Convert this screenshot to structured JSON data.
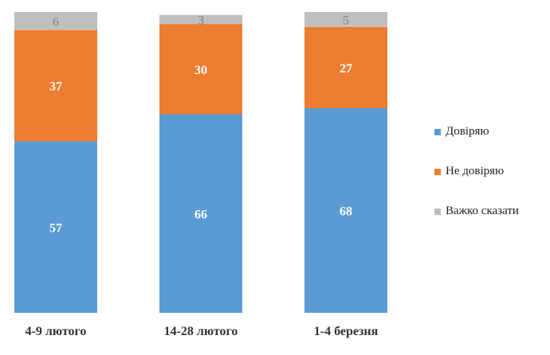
{
  "chart_data": {
    "type": "bar",
    "stacked": true,
    "categories": [
      "4-9 лютого",
      "14-28 лютого",
      "1-4 березня"
    ],
    "series": [
      {
        "name": "Довіряю",
        "values": [
          57,
          66,
          68
        ],
        "color": "#5b9bd5",
        "label_color": "#ffffff"
      },
      {
        "name": "Не довіряю",
        "values": [
          37,
          30,
          27
        ],
        "color": "#ed7d31",
        "label_color": "#ffffff"
      },
      {
        "name": "Важко сказати",
        "values": [
          6,
          3,
          5
        ],
        "color": "#bfbfbf",
        "label_color": "#7f7f7f"
      }
    ],
    "ylim": [
      0,
      100
    ],
    "grid": false,
    "legend_position": "right"
  }
}
